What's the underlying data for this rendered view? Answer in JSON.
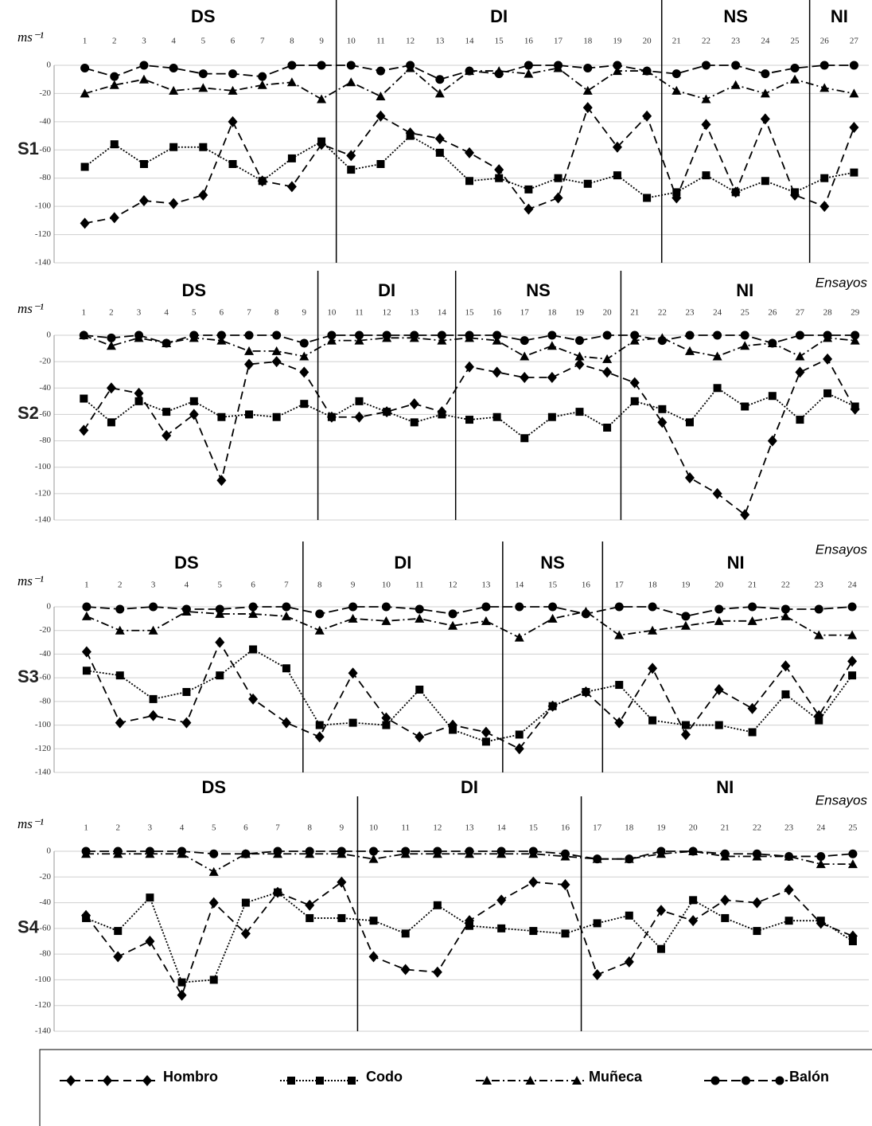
{
  "chart_data": [
    {
      "type": "line",
      "panel_label": "S1",
      "y_label": "ms⁻¹",
      "ylim": [
        -140,
        0
      ],
      "yticks": [
        -140,
        -120,
        -100,
        -80,
        -60,
        -40,
        -20,
        0
      ],
      "grid": true,
      "x": [
        1,
        2,
        3,
        4,
        5,
        6,
        7,
        8,
        9,
        10,
        11,
        12,
        13,
        14,
        15,
        16,
        17,
        18,
        19,
        20,
        21,
        22,
        23,
        24,
        25,
        26,
        27
      ],
      "sections": [
        {
          "label": "DS",
          "start": 1,
          "end": 9
        },
        {
          "label": "DI",
          "start": 10,
          "end": 20
        },
        {
          "label": "NS",
          "start": 21,
          "end": 25
        },
        {
          "label": "NI",
          "start": 26,
          "end": 27
        }
      ],
      "series": [
        {
          "values": [
            -112,
            -108,
            -96,
            -98,
            -92,
            -40,
            -82,
            -86,
            -56,
            -64,
            -36,
            -48,
            -52,
            -62,
            -74,
            -102,
            -94,
            -30,
            -58,
            -36,
            -94,
            -42,
            -90,
            -38,
            -92,
            -100,
            -44
          ]
        },
        {
          "values": [
            -72,
            -56,
            -70,
            -58,
            -58,
            -70,
            -82,
            -66,
            -54,
            -74,
            -70,
            -50,
            -62,
            -82,
            -80,
            -88,
            -80,
            -84,
            -78,
            -94,
            -90,
            -78,
            -90,
            -82,
            -90,
            -80,
            -76
          ]
        },
        {
          "values": [
            -20,
            -14,
            -10,
            -18,
            -16,
            -18,
            -14,
            -12,
            -24,
            -12,
            -22,
            -2,
            -20,
            -4,
            -4,
            -6,
            -2,
            -18,
            -4,
            -4,
            -18,
            -24,
            -14,
            -20,
            -10,
            -16,
            -20
          ]
        },
        {
          "values": [
            -2,
            -8,
            0,
            -2,
            -6,
            -6,
            -8,
            0,
            0,
            0,
            -4,
            0,
            -10,
            -4,
            -6,
            0,
            0,
            -2,
            0,
            -4,
            -6,
            0,
            0,
            -6,
            -2,
            0,
            0
          ]
        }
      ]
    },
    {
      "type": "line",
      "panel_label": "S2",
      "y_label": "ms⁻¹",
      "x_label": "Ensayos",
      "ylim": [
        -140,
        0
      ],
      "yticks": [
        -140,
        -120,
        -100,
        -80,
        -60,
        -40,
        -20,
        0
      ],
      "grid": true,
      "x": [
        1,
        2,
        3,
        4,
        5,
        6,
        7,
        8,
        9,
        10,
        11,
        12,
        13,
        14,
        15,
        16,
        17,
        18,
        19,
        20,
        21,
        22,
        23,
        24,
        25,
        26,
        27,
        28,
        29
      ],
      "sections": [
        {
          "label": "DS",
          "start": 1,
          "end": 9
        },
        {
          "label": "DI",
          "start": 10,
          "end": 14
        },
        {
          "label": "NS",
          "start": 15,
          "end": 20
        },
        {
          "label": "NI",
          "start": 21,
          "end": 29
        }
      ],
      "series": [
        {
          "values": [
            -72,
            -40,
            -44,
            -76,
            -60,
            -110,
            -22,
            -20,
            -28,
            -62,
            -62,
            -58,
            -52,
            -58,
            -24,
            -28,
            -32,
            -32,
            -22,
            -28,
            -36,
            -66,
            -108,
            -120,
            -136,
            -80,
            -28,
            -18,
            -56
          ]
        },
        {
          "values": [
            -48,
            -66,
            -50,
            -58,
            -50,
            -62,
            -60,
            -62,
            -52,
            -62,
            -50,
            -58,
            -66,
            -60,
            -64,
            -62,
            -78,
            -62,
            -58,
            -70,
            -50,
            -56,
            -66,
            -40,
            -54,
            -46,
            -64,
            -44,
            -54
          ]
        },
        {
          "values": [
            0,
            -8,
            -2,
            -6,
            -2,
            -4,
            -12,
            -12,
            -16,
            -4,
            -4,
            -2,
            -2,
            -4,
            -2,
            -4,
            -16,
            -8,
            -16,
            -18,
            -4,
            -2,
            -12,
            -16,
            -8,
            -6,
            -16,
            -2,
            -4
          ]
        },
        {
          "values": [
            0,
            -2,
            0,
            -6,
            0,
            0,
            0,
            0,
            -6,
            0,
            0,
            0,
            0,
            0,
            0,
            0,
            -4,
            0,
            -4,
            0,
            0,
            -4,
            0,
            0,
            0,
            -6,
            0,
            0,
            0
          ]
        }
      ]
    },
    {
      "type": "line",
      "panel_label": "S3",
      "y_label": "ms⁻¹",
      "x_label": "Ensayos",
      "ylim": [
        -140,
        0
      ],
      "yticks": [
        -140,
        -120,
        -100,
        -80,
        -60,
        -40,
        -20,
        0
      ],
      "grid": true,
      "x": [
        1,
        2,
        3,
        4,
        5,
        6,
        7,
        8,
        9,
        10,
        11,
        12,
        13,
        14,
        15,
        16,
        17,
        18,
        19,
        20,
        21,
        22,
        23,
        24
      ],
      "sections": [
        {
          "label": "DS",
          "start": 1,
          "end": 7
        },
        {
          "label": "DI",
          "start": 8,
          "end": 13
        },
        {
          "label": "NS",
          "start": 14,
          "end": 16
        },
        {
          "label": "NI",
          "start": 17,
          "end": 24
        }
      ],
      "series": [
        {
          "values": [
            -38,
            -98,
            -92,
            -98,
            -30,
            -78,
            -98,
            -110,
            -56,
            -94,
            -110,
            -100,
            -106,
            -120,
            -84,
            -72,
            -98,
            -52,
            -108,
            -70,
            -86,
            -50,
            -92,
            -46
          ]
        },
        {
          "values": [
            -54,
            -58,
            -78,
            -72,
            -58,
            -36,
            -52,
            -100,
            -98,
            -100,
            -70,
            -104,
            -114,
            -108,
            -84,
            -72,
            -66,
            -96,
            -100,
            -100,
            -106,
            -74,
            -96,
            -58
          ]
        },
        {
          "values": [
            -8,
            -20,
            -20,
            -4,
            -6,
            -6,
            -8,
            -20,
            -10,
            -12,
            -10,
            -16,
            -12,
            -26,
            -10,
            -4,
            -24,
            -20,
            -16,
            -12,
            -12,
            -8,
            -24,
            -24
          ]
        },
        {
          "values": [
            0,
            -2,
            0,
            -2,
            -2,
            0,
            0,
            -6,
            0,
            0,
            -2,
            -6,
            0,
            0,
            0,
            -6,
            0,
            0,
            -8,
            -2,
            0,
            -2,
            -2,
            0
          ]
        }
      ]
    },
    {
      "type": "line",
      "panel_label": "S4",
      "y_label": "ms⁻¹",
      "x_label": "Ensayos",
      "ylim": [
        -140,
        0
      ],
      "yticks": [
        -140,
        -120,
        -100,
        -80,
        -60,
        -40,
        -20,
        0
      ],
      "grid": true,
      "x": [
        1,
        2,
        3,
        4,
        5,
        6,
        7,
        8,
        9,
        10,
        11,
        12,
        13,
        14,
        15,
        16,
        17,
        18,
        19,
        20,
        21,
        22,
        23,
        24,
        25
      ],
      "sections": [
        {
          "label": "DS",
          "start": 1,
          "end": 9
        },
        {
          "label": "DI",
          "start": 10,
          "end": 16
        },
        {
          "label": "NI",
          "start": 17,
          "end": 25
        }
      ],
      "series": [
        {
          "values": [
            -50,
            -82,
            -70,
            -112,
            -40,
            -64,
            -32,
            -42,
            -24,
            -82,
            -92,
            -94,
            -54,
            -38,
            -24,
            -26,
            -96,
            -86,
            -46,
            -54,
            -38,
            -40,
            -30,
            -56,
            -66
          ]
        },
        {
          "values": [
            -52,
            -62,
            -36,
            -102,
            -100,
            -40,
            -32,
            -52,
            -52,
            -54,
            -64,
            -42,
            -58,
            -60,
            -62,
            -64,
            -56,
            -50,
            -76,
            -38,
            -52,
            -62,
            -54,
            -54,
            -70
          ]
        },
        {
          "values": [
            -2,
            -2,
            -2,
            -2,
            -16,
            -2,
            -2,
            -2,
            -2,
            -6,
            -2,
            -2,
            -2,
            -2,
            -2,
            -4,
            -6,
            -6,
            -2,
            0,
            -4,
            -4,
            -4,
            -10,
            -10
          ]
        },
        {
          "values": [
            0,
            0,
            0,
            0,
            -2,
            -2,
            0,
            0,
            0,
            0,
            0,
            0,
            0,
            0,
            0,
            -2,
            -6,
            -6,
            0,
            0,
            -2,
            -2,
            -4,
            -4,
            -2
          ]
        }
      ]
    }
  ],
  "legend": [
    {
      "name": "Hombro",
      "marker": "diamond",
      "dash": "10,6"
    },
    {
      "name": "Codo",
      "marker": "square",
      "dash": "2,2"
    },
    {
      "name": "Muñeca",
      "marker": "triangle",
      "dash": "10,4,2,4"
    },
    {
      "name": "Balón",
      "marker": "circle",
      "dash": "12,5"
    }
  ]
}
